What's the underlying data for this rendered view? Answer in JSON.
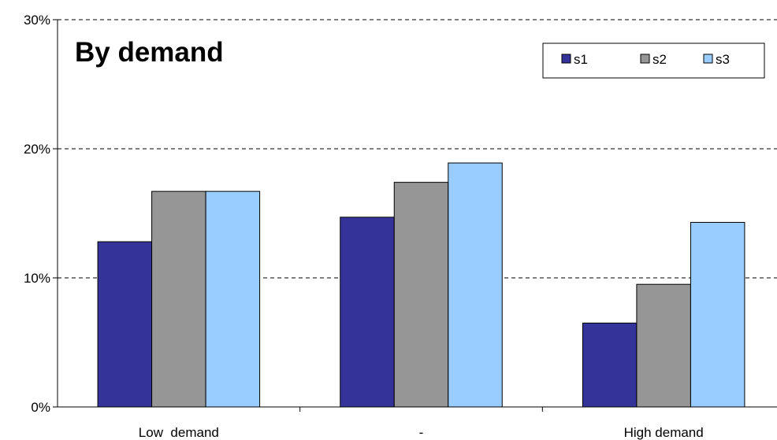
{
  "chart_data": {
    "type": "bar",
    "title": "By demand",
    "categories": [
      "Low  demand",
      "-",
      "High demand"
    ],
    "series": [
      {
        "name": "s1",
        "color": "#333399",
        "values": [
          12.8,
          14.7,
          6.5
        ]
      },
      {
        "name": "s2",
        "color": "#969696",
        "values": [
          16.7,
          17.4,
          9.5
        ]
      },
      {
        "name": "s3",
        "color": "#99ccff",
        "values": [
          16.7,
          18.9,
          14.3
        ]
      }
    ],
    "y_ticks": [
      "0%",
      "10%",
      "20%",
      "30%"
    ],
    "ylim": [
      0,
      30
    ],
    "y_unit": "%",
    "grid": "dashed horizontal",
    "legend_position": "top-right"
  }
}
